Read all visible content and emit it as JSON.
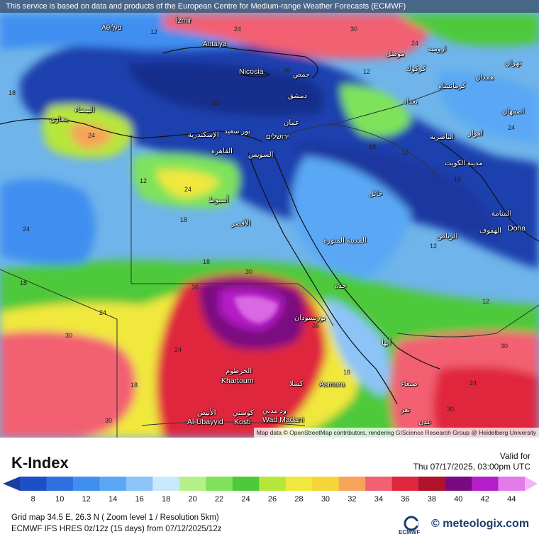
{
  "banner": "This service is based on data and products of the European Centre for Medium-range Weather Forecasts (ECMWF)",
  "attribution": "Map data © OpenStreetMap contributors, rendering GIScience Research Group @ Heidelberg University",
  "title": "K-Index",
  "valid_label": "Valid for",
  "valid_date": "Thu 07/17/2025, 03:00pm UTC",
  "scale": {
    "labels": [
      "8",
      "10",
      "12",
      "14",
      "16",
      "18",
      "20",
      "22",
      "24",
      "26",
      "28",
      "30",
      "32",
      "34",
      "36",
      "38",
      "40",
      "42",
      "44"
    ],
    "colors": [
      "#1d4fc7",
      "#2f6fe0",
      "#3f8ff0",
      "#5aa8f5",
      "#8dc4f7",
      "#c9e8fb",
      "#b5f08a",
      "#7ee35a",
      "#4ec93a",
      "#b7e63a",
      "#f0e83c",
      "#f5d63a",
      "#f7a35a",
      "#f26072",
      "#e0263e",
      "#b0122c",
      "#7a0a80",
      "#b41ec8",
      "#e27be8"
    ]
  },
  "grid_info": "Grid map 34.5 E, 26.3 N ( Zoom level 1 / Resolution 5km)",
  "model_info": "ECMWF IFS HRES 0z/12z (15 days) from  07/12/2025/12z",
  "brand": {
    "ecmwf": "ECMWF",
    "meteologix": "meteologix.com"
  },
  "cities": {
    "izmir": "İzmir",
    "atina": "Αθήνα",
    "antalya": "Antalya",
    "nicosia": "Nicosia",
    "homs": "حمص",
    "dimashq": "دمشق",
    "amman": "عمان",
    "jerusalem": "ירושלים",
    "mosul": "موصل",
    "urmia": "ارومیه",
    "tehran": "تهران",
    "kirkuk": "كركوك",
    "kermanshah": "کرمانشاه",
    "hamadan": "همدان",
    "baghdad": "بغداد",
    "isfahan": "اصفهان",
    "nasiriyah": "الناصرية",
    "ahvaz": "اهواز",
    "kuwait": "مدينة الكويت",
    "ha_il": "حائل",
    "manama": "المنامة",
    "hofuf": "الهفوف",
    "doha": "Doha",
    "riyadh": "الرياض",
    "madinah": "المدينة المنورة",
    "benghazi": "بنغازي",
    "bayda": "البيضاء",
    "alexandria": "الإسكندرية",
    "port_said": "بور سعيد",
    "cairo": "القاهرة",
    "suez": "السويس",
    "asyut": "أسيوط",
    "luxor": "الأقصر",
    "port_sudan": "بورتسودان",
    "khartoum_ar": "الخرطوم",
    "khartoum": "Khartoum",
    "kassala": "كسلا",
    "asmara": "Asmara",
    "sanaa": "صنعاء",
    "al_ubayyid_ar": "الأبيض",
    "al_ubayyid": "Al-Ubayyid",
    "kosti_ar": "كوستي",
    "kosti": "Kosti",
    "wad_madani_ar": "ود مدني",
    "wad_madani": "Wad Madani",
    "jeddah": "جدة",
    "abha": "أبها",
    "taiz": "تعز",
    "aden": "عدن"
  },
  "contour_labels": [
    "12",
    "12",
    "12",
    "12",
    "12",
    "12",
    "12",
    "18",
    "18",
    "18",
    "18",
    "18",
    "18",
    "18",
    "18",
    "24",
    "24",
    "24",
    "24",
    "24",
    "24",
    "24",
    "24",
    "24",
    "30",
    "30",
    "30",
    "30",
    "30",
    "30",
    "30",
    "36",
    "36"
  ]
}
